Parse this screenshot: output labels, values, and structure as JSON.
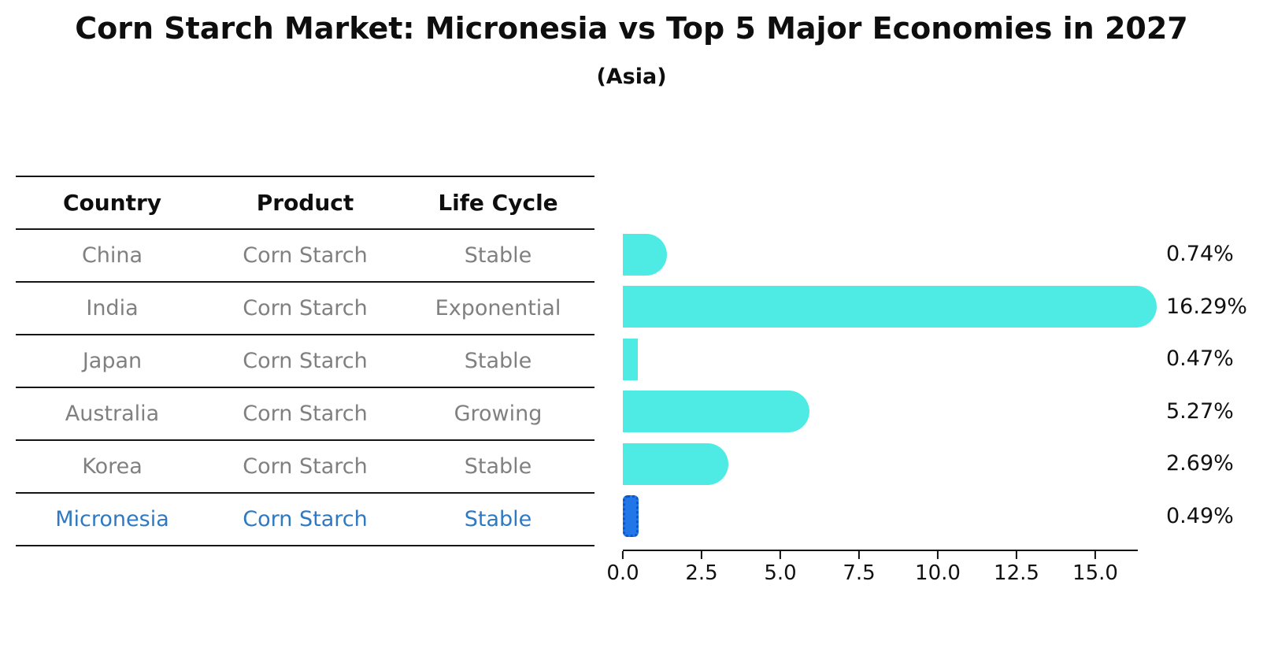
{
  "title": "Corn Starch Market: Micronesia vs Top 5 Major Economies in 2027",
  "subtitle": "(Asia)",
  "table": {
    "headers": [
      "Country",
      "Product",
      "Life Cycle"
    ],
    "rows": [
      {
        "country": "China",
        "product": "Corn Starch",
        "life_cycle": "Stable",
        "highlight": false
      },
      {
        "country": "India",
        "product": "Corn Starch",
        "life_cycle": "Exponential",
        "highlight": false
      },
      {
        "country": "Japan",
        "product": "Corn Starch",
        "life_cycle": "Stable",
        "highlight": false
      },
      {
        "country": "Australia",
        "product": "Corn Starch",
        "life_cycle": "Growing",
        "highlight": false
      },
      {
        "country": "Korea",
        "product": "Corn Starch",
        "life_cycle": "Stable",
        "highlight": false
      },
      {
        "country": "Micronesia",
        "product": "Corn Starch",
        "life_cycle": "Stable",
        "highlight": true
      }
    ]
  },
  "chart_data": {
    "type": "bar",
    "orientation": "horizontal",
    "title": "Corn Starch Market: Micronesia vs Top 5 Major Economies in 2027",
    "subtitle": "(Asia)",
    "categories": [
      "China",
      "India",
      "Japan",
      "Australia",
      "Korea",
      "Micronesia"
    ],
    "values": [
      0.74,
      16.29,
      0.47,
      5.27,
      2.69,
      0.49
    ],
    "value_labels": [
      "0.74%",
      "16.29%",
      "0.47%",
      "5.27%",
      "2.69%",
      "0.49%"
    ],
    "x_ticks": [
      0.0,
      2.5,
      5.0,
      7.5,
      10.0,
      12.5,
      15.0
    ],
    "x_tick_labels": [
      "0.0",
      "2.5",
      "5.0",
      "7.5",
      "10.0",
      "12.5",
      "15.0"
    ],
    "xlim": [
      0,
      16.35
    ],
    "grid": false,
    "legend": "none",
    "bar_color": "#4debe3",
    "highlight_bar_color": "#2176e8",
    "highlight_index": 5,
    "highlight_text_color": "#2e79c2",
    "row_text_color": "#808080",
    "value_label_color": "#111111"
  }
}
